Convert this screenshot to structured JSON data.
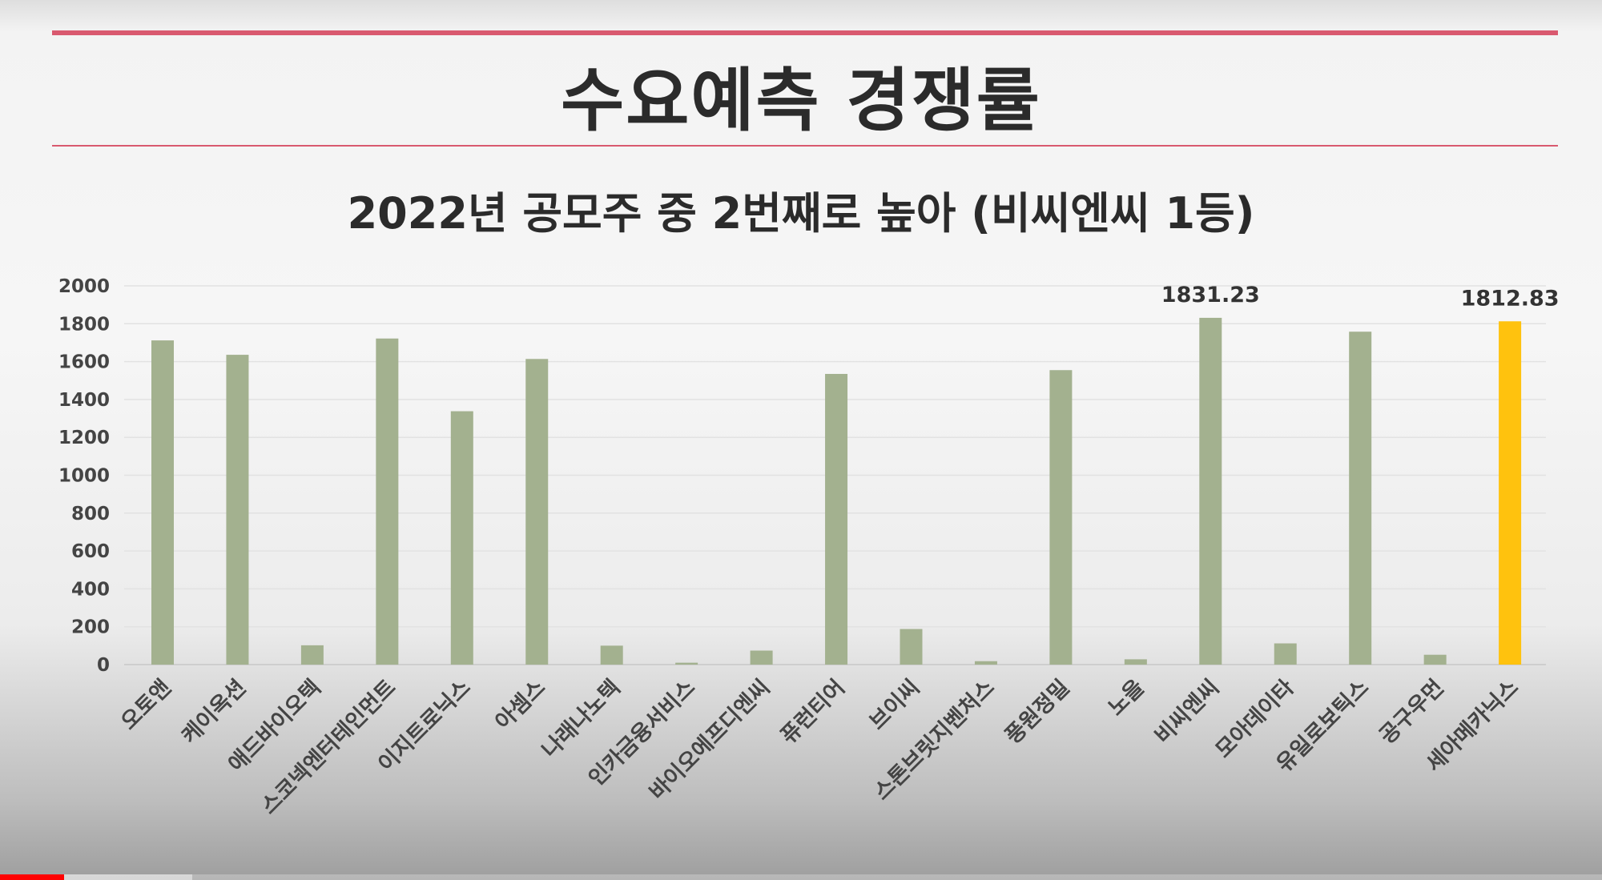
{
  "slide": {
    "title": "수요예측 경쟁률",
    "subtitle": "2022년 공모주 중 2번째로 높아 (비씨엔씨 1등)",
    "rule_color": "#d9596f"
  },
  "chart_data": {
    "type": "bar",
    "categories": [
      "오토앤",
      "케이옥션",
      "애드바이오텍",
      "스코넥엔터테인먼트",
      "이지트로닉스",
      "아셈스",
      "나래나노텍",
      "인카금융서비스",
      "바이오에프디엔씨",
      "퓨런티어",
      "브이씨",
      "스톤브릿지벤처스",
      "풍원정밀",
      "노을",
      "비씨엔씨",
      "모아데이타",
      "유일로보틱스",
      "공구우먼",
      "세아메카닉스"
    ],
    "values": [
      1712,
      1636,
      102,
      1722,
      1338,
      1614,
      100,
      10,
      74,
      1535,
      188,
      18,
      1555,
      28,
      1831.23,
      112,
      1758,
      52,
      1812.83
    ],
    "data_labels": [
      null,
      null,
      null,
      null,
      null,
      null,
      null,
      null,
      null,
      null,
      null,
      null,
      null,
      null,
      "1831.23",
      null,
      null,
      null,
      "1812.83"
    ],
    "y_ticks": [
      0,
      200,
      400,
      600,
      800,
      1000,
      1200,
      1400,
      1600,
      1800,
      2000
    ],
    "ylim": [
      0,
      2000
    ],
    "grid": true,
    "legend": "none",
    "colors": {
      "bar": "#a3b18f",
      "highlight": "#ffc20e"
    },
    "highlight_index": 18
  },
  "video_progress": {
    "played": 0.04,
    "buffered": 0.12
  }
}
